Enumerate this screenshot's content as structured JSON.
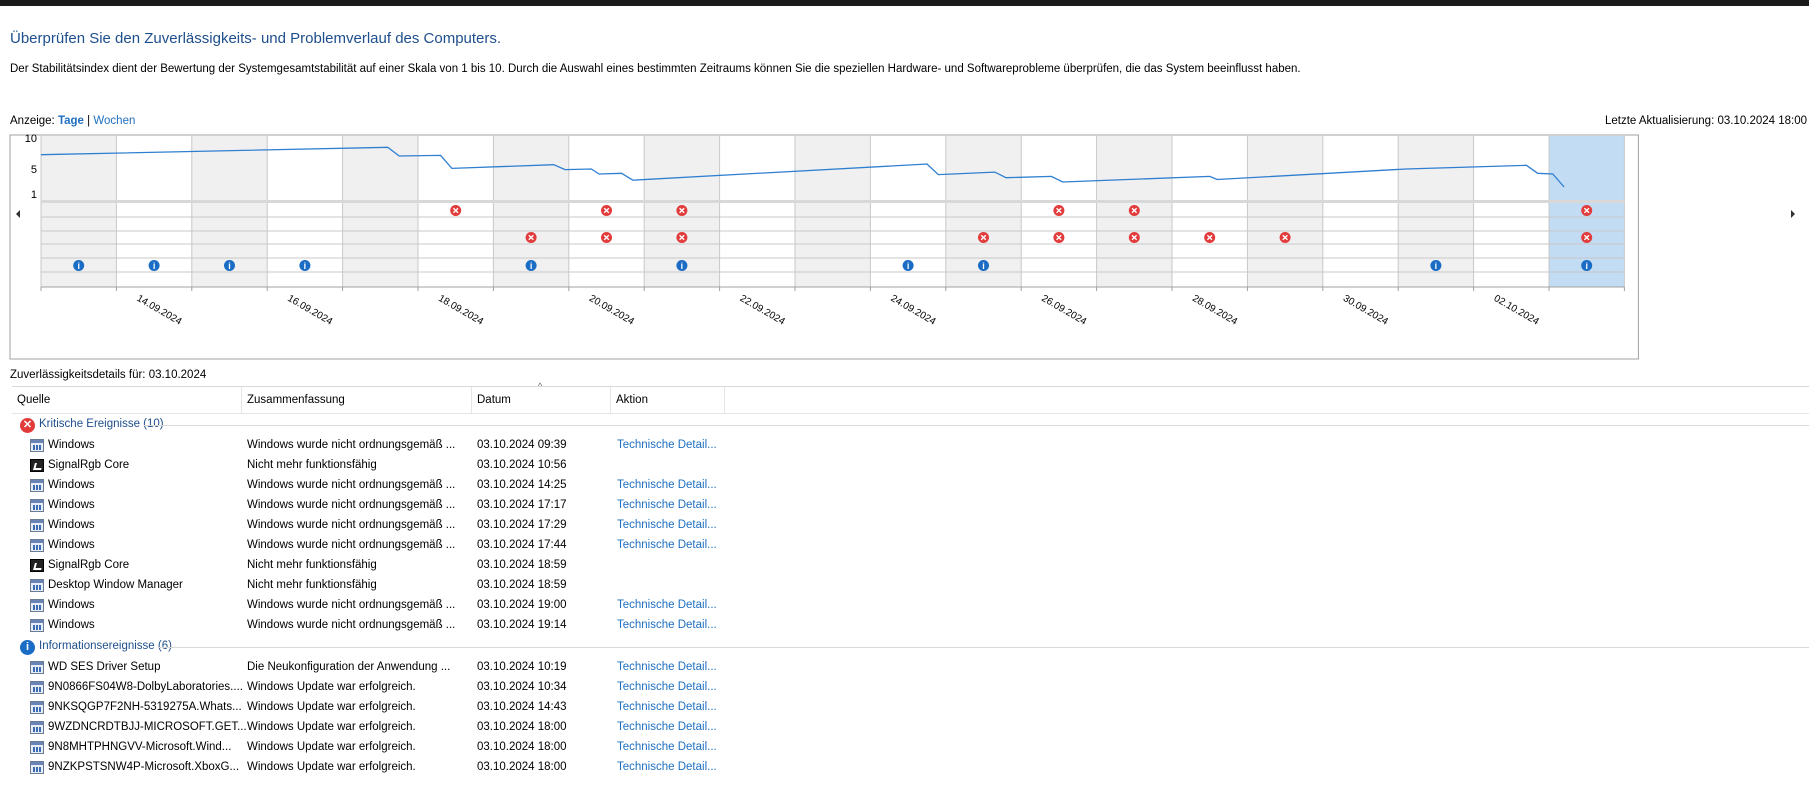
{
  "title": "Überprüfen Sie den Zuverlässigkeits- und Problemverlauf des Computers.",
  "description": "Der Stabilitätsindex dient der Bewertung der Systemgesamtstabilität auf einer Skala von 1 bis 10. Durch die Auswahl eines bestimmten Zeitraums können Sie die speziellen Hardware- und Softwareprobleme überprüfen, die das System beeinflusst haben.",
  "view": {
    "label": "Anzeige:",
    "days": "Tage",
    "separator": "|",
    "weeks": "Wochen"
  },
  "last_update": "Letzte Aktualisierung: 03.10.2024 18:00",
  "colors": {
    "accent": "#1e6fc1",
    "title": "#1e4e8c",
    "line": "#2f7fd1",
    "error": "#e23b3b",
    "info": "#1a6cc4",
    "selected": "#c2dcf4",
    "shaded": "#f0f0f0"
  },
  "chart_data": {
    "type": "line",
    "y_ticks": [
      "10",
      "5",
      "1"
    ],
    "ylim": [
      0,
      10
    ],
    "categories": [
      "13.09.2024",
      "14.09.2024",
      "15.09.2024",
      "16.09.2024",
      "17.09.2024",
      "18.09.2024",
      "19.09.2024",
      "20.09.2024",
      "21.09.2024",
      "22.09.2024",
      "23.09.2024",
      "24.09.2024",
      "25.09.2024",
      "26.09.2024",
      "27.09.2024",
      "28.09.2024",
      "29.09.2024",
      "30.09.2024",
      "01.10.2024",
      "02.10.2024",
      "03.10.2024"
    ],
    "x_tick_labels": [
      "14.09.2024",
      "16.09.2024",
      "18.09.2024",
      "20.09.2024",
      "22.09.2024",
      "24.09.2024",
      "26.09.2024",
      "28.09.2024",
      "30.09.2024",
      "02.10.2024"
    ],
    "selected_day": "03.10.2024",
    "stability_line": [
      [
        0,
        7.3
      ],
      [
        4.6,
        8.5
      ],
      [
        4.75,
        7.1
      ],
      [
        5.3,
        7.2
      ],
      [
        5.45,
        5.1
      ],
      [
        6.8,
        5.7
      ],
      [
        6.95,
        4.9
      ],
      [
        7.3,
        5.0
      ],
      [
        7.4,
        4.2
      ],
      [
        7.7,
        4.3
      ],
      [
        7.85,
        3.2
      ],
      [
        11.75,
        5.8
      ],
      [
        11.9,
        4.1
      ],
      [
        12.65,
        4.5
      ],
      [
        12.8,
        3.6
      ],
      [
        13.4,
        3.8
      ],
      [
        13.55,
        2.9
      ],
      [
        15.5,
        3.8
      ],
      [
        15.6,
        3.3
      ],
      [
        18.1,
        5.0
      ],
      [
        19.7,
        5.6
      ],
      [
        19.85,
        4.3
      ],
      [
        20.05,
        4.2
      ],
      [
        20.2,
        2.1
      ]
    ],
    "error_rows": [
      [
        5,
        7,
        8,
        13,
        14,
        20
      ],
      [],
      [
        6,
        7,
        8,
        12,
        13,
        14,
        15,
        16,
        20
      ],
      []
    ],
    "info_row": [
      0,
      1,
      2,
      3,
      6,
      8,
      11,
      12,
      18,
      20
    ]
  },
  "details_label": "Zuverlässigkeitsdetails für: 03.10.2024",
  "columns": [
    "Quelle",
    "Zusammenfassung",
    "Datum",
    "Aktion"
  ],
  "groups": [
    {
      "label": "Kritische Ereignisse (10)",
      "icon": "error-icon",
      "rows": [
        {
          "icon": "win",
          "source": "Windows",
          "summary": "Windows wurde nicht ordnungsgemäß ...",
          "date": "03.10.2024 09:39",
          "action": "Technische Detail..."
        },
        {
          "icon": "sig",
          "source": "SignalRgb Core",
          "summary": "Nicht mehr funktionsfähig",
          "date": "03.10.2024 10:56",
          "action": ""
        },
        {
          "icon": "win",
          "source": "Windows",
          "summary": "Windows wurde nicht ordnungsgemäß ...",
          "date": "03.10.2024 14:25",
          "action": "Technische Detail..."
        },
        {
          "icon": "win",
          "source": "Windows",
          "summary": "Windows wurde nicht ordnungsgemäß ...",
          "date": "03.10.2024 17:17",
          "action": "Technische Detail..."
        },
        {
          "icon": "win",
          "source": "Windows",
          "summary": "Windows wurde nicht ordnungsgemäß ...",
          "date": "03.10.2024 17:29",
          "action": "Technische Detail..."
        },
        {
          "icon": "win",
          "source": "Windows",
          "summary": "Windows wurde nicht ordnungsgemäß ...",
          "date": "03.10.2024 17:44",
          "action": "Technische Detail..."
        },
        {
          "icon": "sig",
          "source": "SignalRgb Core",
          "summary": "Nicht mehr funktionsfähig",
          "date": "03.10.2024 18:59",
          "action": ""
        },
        {
          "icon": "win",
          "source": "Desktop Window Manager",
          "summary": "Nicht mehr funktionsfähig",
          "date": "03.10.2024 18:59",
          "action": ""
        },
        {
          "icon": "win",
          "source": "Windows",
          "summary": "Windows wurde nicht ordnungsgemäß ...",
          "date": "03.10.2024 19:00",
          "action": "Technische Detail..."
        },
        {
          "icon": "win",
          "source": "Windows",
          "summary": "Windows wurde nicht ordnungsgemäß ...",
          "date": "03.10.2024 19:14",
          "action": "Technische Detail..."
        }
      ]
    },
    {
      "label": "Informationsereignisse (6)",
      "icon": "info-icon",
      "rows": [
        {
          "icon": "win",
          "source": "WD SES Driver Setup",
          "summary": "Die Neukonfiguration der Anwendung ...",
          "date": "03.10.2024 10:19",
          "action": "Technische Detail..."
        },
        {
          "icon": "win",
          "source": "9N0866FS04W8-DolbyLaboratories....",
          "summary": "Windows Update war erfolgreich.",
          "date": "03.10.2024 10:34",
          "action": "Technische Detail..."
        },
        {
          "icon": "win",
          "source": "9NKSQGP7F2NH-5319275A.Whats...",
          "summary": "Windows Update war erfolgreich.",
          "date": "03.10.2024 14:43",
          "action": "Technische Detail..."
        },
        {
          "icon": "win",
          "source": "9WZDNCRDTBJJ-MICROSOFT.GET...",
          "summary": "Windows Update war erfolgreich.",
          "date": "03.10.2024 18:00",
          "action": "Technische Detail..."
        },
        {
          "icon": "win",
          "source": "9N8MHTPHNGVV-Microsoft.Wind...",
          "summary": "Windows Update war erfolgreich.",
          "date": "03.10.2024 18:00",
          "action": "Technische Detail..."
        },
        {
          "icon": "win",
          "source": "9NZKPSTSNW4P-Microsoft.XboxG...",
          "summary": "Windows Update war erfolgreich.",
          "date": "03.10.2024 18:00",
          "action": "Technische Detail..."
        }
      ]
    }
  ]
}
